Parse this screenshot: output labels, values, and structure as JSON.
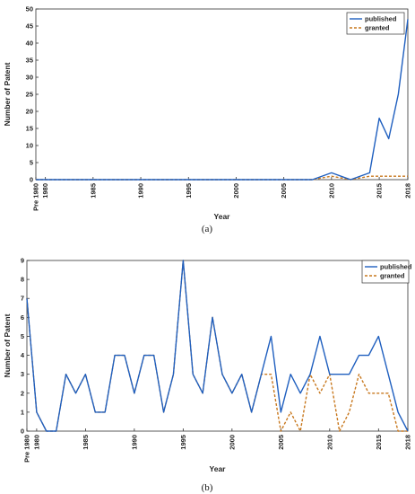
{
  "colors": {
    "published": "#1f5fbf",
    "granted": "#c8781e",
    "axis": "#333333"
  },
  "chart_data": [
    {
      "type": "line",
      "panel_label": "(a)",
      "xlabel": "Year",
      "ylabel": "Number of Patent",
      "ylim": [
        0,
        50
      ],
      "yticks": [
        0,
        5,
        10,
        15,
        20,
        25,
        30,
        35,
        40,
        45,
        50
      ],
      "xlim": [
        0,
        38
      ],
      "xticks": [
        {
          "x": 0,
          "label": "Pre 1980"
        },
        {
          "x": 1,
          "label": "1980"
        },
        {
          "x": 6,
          "label": "1985"
        },
        {
          "x": 11,
          "label": "1990"
        },
        {
          "x": 16,
          "label": "1995"
        },
        {
          "x": 21,
          "label": "2000"
        },
        {
          "x": 26,
          "label": "2005"
        },
        {
          "x": 31,
          "label": "2010"
        },
        {
          "x": 36,
          "label": "2015"
        },
        {
          "x": 39,
          "label": "2018"
        }
      ],
      "legend_position": "top-right",
      "series": [
        {
          "name": "published",
          "style": "solid",
          "points": [
            [
              0,
              0
            ],
            [
              29,
              0
            ],
            [
              31,
              2
            ],
            [
              33,
              0
            ],
            [
              35,
              2
            ],
            [
              36,
              18
            ],
            [
              37,
              12
            ],
            [
              38,
              25
            ],
            [
              39,
              47
            ]
          ]
        },
        {
          "name": "granted",
          "style": "dashed",
          "points": [
            [
              0,
              0
            ],
            [
              29,
              0
            ],
            [
              31,
              1
            ],
            [
              33,
              0
            ],
            [
              35,
              1
            ],
            [
              39,
              1
            ]
          ]
        }
      ]
    },
    {
      "type": "line",
      "panel_label": "(b)",
      "xlabel": "Year",
      "ylabel": "Number of Patent",
      "ylim": [
        0,
        9
      ],
      "yticks": [
        0,
        1,
        2,
        3,
        4,
        5,
        6,
        7,
        8,
        9
      ],
      "xlim": [
        0,
        39
      ],
      "xticks": [
        {
          "x": 0,
          "label": "Pre 1980"
        },
        {
          "x": 1,
          "label": "1980"
        },
        {
          "x": 6,
          "label": "1985"
        },
        {
          "x": 11,
          "label": "1990"
        },
        {
          "x": 16,
          "label": "1995"
        },
        {
          "x": 21,
          "label": "2000"
        },
        {
          "x": 26,
          "label": "2005"
        },
        {
          "x": 31,
          "label": "2010"
        },
        {
          "x": 36,
          "label": "2015"
        },
        {
          "x": 39,
          "label": "2018"
        }
      ],
      "legend_position": "top-right",
      "series": [
        {
          "name": "published",
          "style": "solid",
          "points": [
            [
              0,
              7
            ],
            [
              1,
              1
            ],
            [
              2,
              0
            ],
            [
              3,
              0
            ],
            [
              4,
              3
            ],
            [
              5,
              2
            ],
            [
              6,
              3
            ],
            [
              7,
              1
            ],
            [
              8,
              1
            ],
            [
              9,
              4
            ],
            [
              10,
              4
            ],
            [
              11,
              2
            ],
            [
              12,
              4
            ],
            [
              13,
              4
            ],
            [
              14,
              1
            ],
            [
              15,
              3
            ],
            [
              16,
              9
            ],
            [
              17,
              3
            ],
            [
              18,
              2
            ],
            [
              19,
              6
            ],
            [
              20,
              3
            ],
            [
              21,
              2
            ],
            [
              22,
              3
            ],
            [
              23,
              1
            ],
            [
              24,
              3
            ],
            [
              25,
              5
            ],
            [
              26,
              1
            ],
            [
              27,
              3
            ],
            [
              28,
              2
            ],
            [
              29,
              3
            ],
            [
              30,
              5
            ],
            [
              31,
              3
            ],
            [
              32,
              3
            ],
            [
              33,
              3
            ],
            [
              34,
              4
            ],
            [
              35,
              4
            ],
            [
              36,
              5
            ],
            [
              37,
              3
            ],
            [
              38,
              1
            ],
            [
              39,
              0
            ]
          ]
        },
        {
          "name": "granted",
          "style": "dashed",
          "points": [
            [
              0,
              7
            ],
            [
              1,
              1
            ],
            [
              2,
              0
            ],
            [
              3,
              0
            ],
            [
              4,
              3
            ],
            [
              5,
              2
            ],
            [
              6,
              3
            ],
            [
              7,
              1
            ],
            [
              8,
              1
            ],
            [
              9,
              4
            ],
            [
              10,
              4
            ],
            [
              11,
              2
            ],
            [
              12,
              4
            ],
            [
              13,
              4
            ],
            [
              14,
              1
            ],
            [
              15,
              3
            ],
            [
              16,
              9
            ],
            [
              17,
              3
            ],
            [
              18,
              2
            ],
            [
              19,
              6
            ],
            [
              20,
              3
            ],
            [
              21,
              2
            ],
            [
              22,
              3
            ],
            [
              23,
              1
            ],
            [
              24,
              3
            ],
            [
              25,
              3
            ],
            [
              26,
              0
            ],
            [
              27,
              1
            ],
            [
              28,
              0
            ],
            [
              29,
              3
            ],
            [
              30,
              2
            ],
            [
              31,
              3
            ],
            [
              32,
              0
            ],
            [
              33,
              1
            ],
            [
              34,
              3
            ],
            [
              35,
              2
            ],
            [
              36,
              2
            ],
            [
              37,
              2
            ],
            [
              38,
              0
            ],
            [
              39,
              0
            ]
          ]
        }
      ]
    }
  ]
}
